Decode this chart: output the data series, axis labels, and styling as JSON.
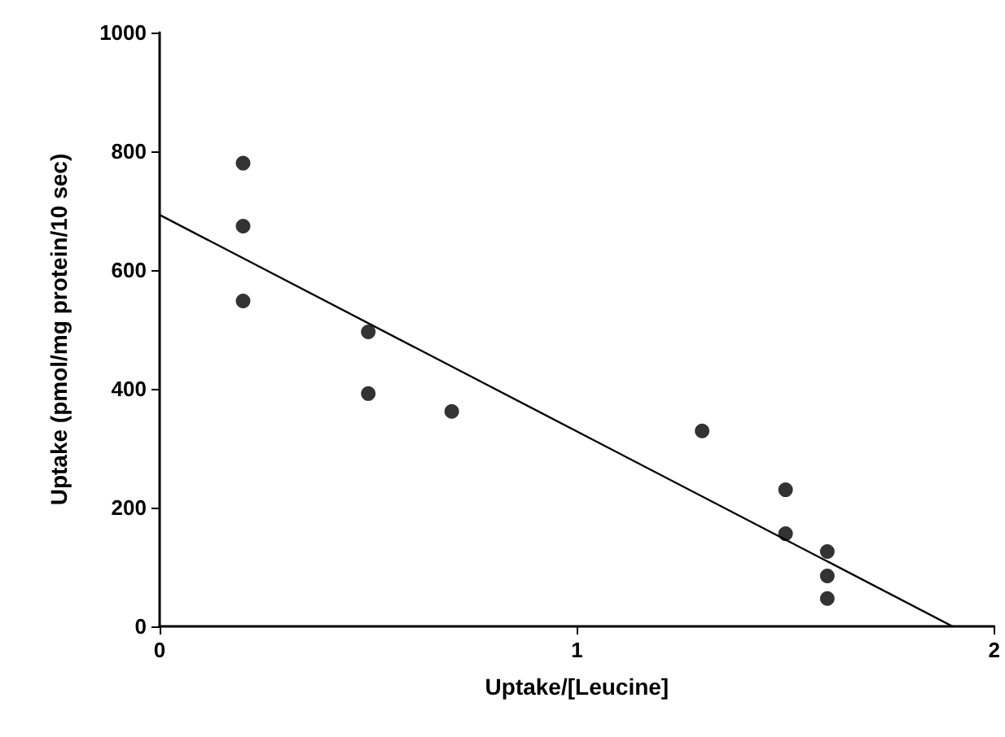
{
  "chart_data": {
    "type": "scatter",
    "xlabel": "Uptake/[Leucine]",
    "ylabel": "Uptake (pmol/mg protein/10 sec)",
    "series": [
      {
        "color": "#000000",
        "marker": "circle",
        "x": [
          0.2,
          0.2,
          0.2,
          0.5,
          0.5,
          0.7,
          1.3,
          1.5,
          1.5,
          1.6,
          1.6,
          1.6
        ],
        "values": [
          780,
          674,
          548,
          496,
          392,
          362,
          329,
          230,
          156,
          126,
          85,
          47
        ]
      },
      {
        "type": "line",
        "color": "#000000",
        "marker": "none",
        "x": [
          0,
          1.9
        ],
        "values": [
          693,
          0
        ]
      }
    ],
    "xlim": [
      0,
      2
    ],
    "xticks": [
      0,
      1,
      2
    ],
    "ylim": [
      0,
      1000
    ],
    "yticks": [
      0,
      200,
      400,
      600,
      800,
      1000
    ],
    "grid": false
  }
}
